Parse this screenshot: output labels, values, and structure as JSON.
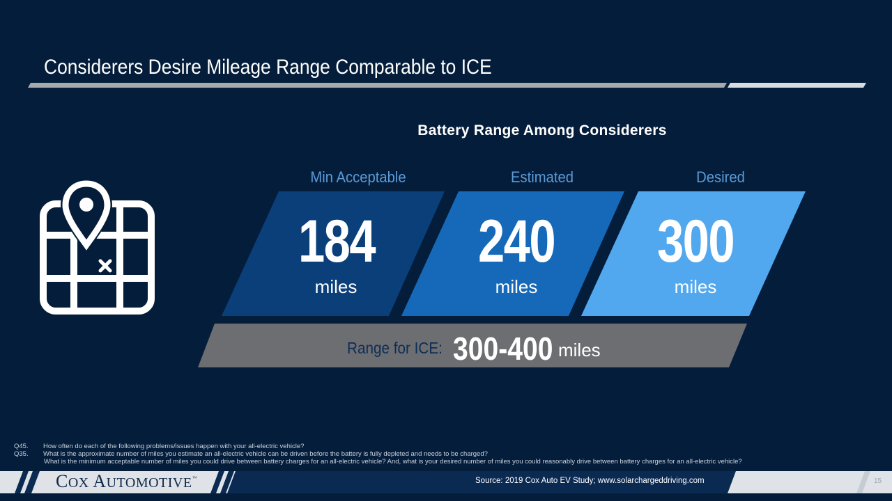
{
  "header": {
    "title": "Considerers Desire Mileage Range Comparable to ICE"
  },
  "chart": {
    "title": "Battery Range Among Considerers",
    "tiles": [
      {
        "label": "Min Acceptable",
        "value": "184",
        "unit": "miles",
        "color": "#0b3f7a"
      },
      {
        "label": "Estimated",
        "value": "240",
        "unit": "miles",
        "color": "#1569b8"
      },
      {
        "label": "Desired",
        "value": "300",
        "unit": "miles",
        "color": "#52a8ef"
      }
    ],
    "ice": {
      "label": "Range for ICE:",
      "value": "300-400",
      "unit": "miles"
    }
  },
  "icon": {
    "name": "map-pin-icon"
  },
  "notes": [
    {
      "q": "Q45.",
      "text": "How often do each of the following problems/issues happen with your all-electric vehicle?"
    },
    {
      "q": "Q35.",
      "text": "What is the approximate number of miles you estimate an all-electric vehicle can be driven before the battery is fully depleted and needs to be charged?"
    },
    {
      "q": "",
      "text": "What is the minimum acceptable number of miles you could drive between battery charges for an all-electric vehicle? And, what is your desired number of miles you could reasonably drive between battery charges for an all-electric vehicle?"
    }
  ],
  "footer": {
    "logo": "Cox Automotive",
    "source": "Source:  2019 Cox Auto EV Study; www.solarchargeddriving.com",
    "page": "15"
  },
  "colors": {
    "background": "#041d3a",
    "accent": "#5b9bd8",
    "ice_band": "#6d6e71",
    "footer_bar": "#dfe3e8"
  }
}
